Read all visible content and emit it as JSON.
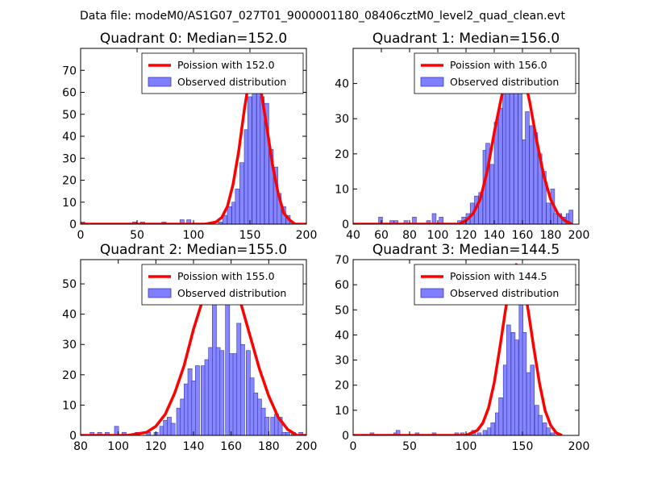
{
  "figure_title": "Data file: modeM0/AS1G07_027T01_9000001180_08406cztM0_level2_quad_clean.evt",
  "colors": {
    "bar_fill": "#8080ff",
    "bar_stroke": "#3a3ab0",
    "curve": "#ff0000"
  },
  "chart_data": [
    {
      "type": "bar",
      "title": "Quadrant 0: Median=152.0",
      "xlim": [
        0,
        200
      ],
      "ylim": [
        0,
        80
      ],
      "xticks": [
        0,
        50,
        100,
        150,
        200
      ],
      "yticks": [
        0,
        10,
        20,
        30,
        40,
        50,
        60,
        70
      ],
      "bin_width": 3.7,
      "bars": [
        [
          0,
          1
        ],
        [
          46,
          1
        ],
        [
          53,
          1
        ],
        [
          72,
          1
        ],
        [
          88,
          2
        ],
        [
          94,
          2
        ],
        [
          122,
          1
        ],
        [
          126,
          4
        ],
        [
          130,
          8
        ],
        [
          134,
          10
        ],
        [
          137,
          16
        ],
        [
          141,
          28
        ],
        [
          145,
          43
        ],
        [
          148,
          58
        ],
        [
          152,
          68
        ],
        [
          156,
          61
        ],
        [
          159,
          58
        ],
        [
          163,
          55
        ],
        [
          167,
          34
        ],
        [
          171,
          26
        ],
        [
          174,
          14
        ],
        [
          178,
          8
        ],
        [
          182,
          4
        ],
        [
          185,
          1
        ]
      ],
      "curve": [
        [
          0,
          0
        ],
        [
          110,
          0
        ],
        [
          120,
          1
        ],
        [
          125,
          3
        ],
        [
          130,
          8
        ],
        [
          135,
          18
        ],
        [
          140,
          33
        ],
        [
          145,
          52
        ],
        [
          150,
          68
        ],
        [
          152,
          73
        ],
        [
          155,
          70
        ],
        [
          160,
          60
        ],
        [
          165,
          44
        ],
        [
          170,
          27
        ],
        [
          175,
          14
        ],
        [
          180,
          5
        ],
        [
          185,
          2
        ],
        [
          190,
          0
        ],
        [
          200,
          0
        ]
      ],
      "legend": {
        "line": "Poission with 152.0",
        "bars": "Observed distribution"
      }
    },
    {
      "type": "bar",
      "title": "Quadrant 1: Median=156.0",
      "xlim": [
        40,
        200
      ],
      "ylim": [
        0,
        50
      ],
      "xticks": [
        40,
        60,
        80,
        100,
        120,
        140,
        160,
        180,
        200
      ],
      "yticks": [
        0,
        10,
        20,
        30,
        40
      ],
      "bin_width": 2.8,
      "bars": [
        [
          58,
          2
        ],
        [
          66,
          1
        ],
        [
          69,
          1
        ],
        [
          76,
          1
        ],
        [
          82,
          2
        ],
        [
          92,
          1
        ],
        [
          96,
          3
        ],
        [
          101,
          2
        ],
        [
          114,
          1
        ],
        [
          117,
          2
        ],
        [
          120,
          3
        ],
        [
          123,
          6
        ],
        [
          126,
          8
        ],
        [
          129,
          9
        ],
        [
          132,
          21
        ],
        [
          134,
          23
        ],
        [
          137,
          17
        ],
        [
          140,
          29
        ],
        [
          143,
          33
        ],
        [
          146,
          41
        ],
        [
          148,
          44
        ],
        [
          151,
          44
        ],
        [
          154,
          45
        ],
        [
          157,
          41
        ],
        [
          160,
          24
        ],
        [
          162,
          32
        ],
        [
          165,
          28
        ],
        [
          168,
          26
        ],
        [
          171,
          20
        ],
        [
          174,
          15
        ],
        [
          177,
          6
        ],
        [
          180,
          10
        ],
        [
          182,
          3
        ],
        [
          185,
          3
        ],
        [
          188,
          2
        ],
        [
          191,
          3
        ],
        [
          193,
          4
        ]
      ],
      "curve": [
        [
          40,
          0
        ],
        [
          115,
          0
        ],
        [
          120,
          1
        ],
        [
          125,
          3
        ],
        [
          130,
          7
        ],
        [
          135,
          15
        ],
        [
          140,
          26
        ],
        [
          145,
          36
        ],
        [
          150,
          44
        ],
        [
          155,
          47
        ],
        [
          160,
          44
        ],
        [
          165,
          35
        ],
        [
          170,
          24
        ],
        [
          175,
          14
        ],
        [
          180,
          7
        ],
        [
          185,
          3
        ],
        [
          190,
          1
        ],
        [
          195,
          0
        ]
      ],
      "legend": {
        "line": "Poission with 156.0",
        "bars": "Observed distribution"
      }
    },
    {
      "type": "bar",
      "title": "Quadrant 2: Median=155.0",
      "xlim": [
        80,
        200
      ],
      "ylim": [
        0,
        58
      ],
      "xticks": [
        80,
        100,
        120,
        140,
        160,
        180,
        200
      ],
      "yticks": [
        0,
        10,
        20,
        30,
        40,
        50
      ],
      "bin_width": 2.2,
      "bars": [
        [
          85,
          1
        ],
        [
          89,
          1
        ],
        [
          93,
          1
        ],
        [
          98,
          3
        ],
        [
          102,
          1
        ],
        [
          109,
          1
        ],
        [
          115,
          1
        ],
        [
          119,
          1
        ],
        [
          122,
          3
        ],
        [
          124,
          5
        ],
        [
          126,
          6
        ],
        [
          128,
          4
        ],
        [
          131,
          9
        ],
        [
          133,
          12
        ],
        [
          135,
          17
        ],
        [
          137,
          22
        ],
        [
          139,
          18
        ],
        [
          141,
          23
        ],
        [
          144,
          23
        ],
        [
          146,
          25
        ],
        [
          148,
          29
        ],
        [
          150,
          55
        ],
        [
          152,
          29
        ],
        [
          154,
          28
        ],
        [
          157,
          45
        ],
        [
          159,
          27
        ],
        [
          161,
          27
        ],
        [
          163,
          37
        ],
        [
          165,
          30
        ],
        [
          168,
          28
        ],
        [
          170,
          19
        ],
        [
          172,
          14
        ],
        [
          174,
          12
        ],
        [
          176,
          9
        ],
        [
          178,
          6
        ],
        [
          181,
          6
        ],
        [
          183,
          7
        ],
        [
          185,
          6
        ],
        [
          187,
          1
        ],
        [
          189,
          1
        ],
        [
          192,
          1
        ],
        [
          194,
          0
        ],
        [
          196,
          1
        ]
      ],
      "curve": [
        [
          80,
          0
        ],
        [
          105,
          0
        ],
        [
          115,
          1
        ],
        [
          120,
          3
        ],
        [
          125,
          7
        ],
        [
          130,
          14
        ],
        [
          135,
          23
        ],
        [
          140,
          35
        ],
        [
          145,
          45
        ],
        [
          150,
          53
        ],
        [
          155,
          55
        ],
        [
          160,
          52
        ],
        [
          165,
          44
        ],
        [
          170,
          33
        ],
        [
          175,
          22
        ],
        [
          180,
          13
        ],
        [
          185,
          6
        ],
        [
          190,
          2
        ],
        [
          195,
          0
        ],
        [
          200,
          0
        ]
      ],
      "legend": {
        "line": "Poission with 155.0",
        "bars": "Observed distribution"
      }
    },
    {
      "type": "bar",
      "title": "Quadrant 3: Median=144.5",
      "xlim": [
        0,
        200
      ],
      "ylim": [
        0,
        70
      ],
      "xticks": [
        0,
        50,
        100,
        150,
        200
      ],
      "yticks": [
        0,
        10,
        20,
        30,
        40,
        50,
        60,
        70
      ],
      "bin_width": 3.5,
      "bars": [
        [
          15,
          1
        ],
        [
          36,
          1
        ],
        [
          38,
          2
        ],
        [
          55,
          1
        ],
        [
          70,
          1
        ],
        [
          90,
          1
        ],
        [
          95,
          1
        ],
        [
          105,
          2
        ],
        [
          110,
          1
        ],
        [
          115,
          2
        ],
        [
          119,
          3
        ],
        [
          122,
          5
        ],
        [
          126,
          9
        ],
        [
          129,
          15
        ],
        [
          133,
          28
        ],
        [
          136,
          44
        ],
        [
          140,
          41
        ],
        [
          143,
          38
        ],
        [
          147,
          63
        ],
        [
          150,
          41
        ],
        [
          154,
          25
        ],
        [
          157,
          28
        ],
        [
          161,
          12
        ],
        [
          164,
          8
        ],
        [
          168,
          5
        ],
        [
          171,
          3
        ],
        [
          175,
          1
        ]
      ],
      "curve": [
        [
          0,
          0
        ],
        [
          100,
          0
        ],
        [
          105,
          1
        ],
        [
          110,
          2
        ],
        [
          115,
          5
        ],
        [
          120,
          11
        ],
        [
          125,
          21
        ],
        [
          130,
          35
        ],
        [
          135,
          50
        ],
        [
          140,
          63
        ],
        [
          144.5,
          68
        ],
        [
          150,
          63
        ],
        [
          155,
          50
        ],
        [
          160,
          35
        ],
        [
          165,
          21
        ],
        [
          170,
          10
        ],
        [
          175,
          4
        ],
        [
          180,
          1
        ],
        [
          185,
          0
        ]
      ],
      "legend": {
        "line": "Poission with 144.5",
        "bars": "Observed distribution"
      }
    }
  ]
}
